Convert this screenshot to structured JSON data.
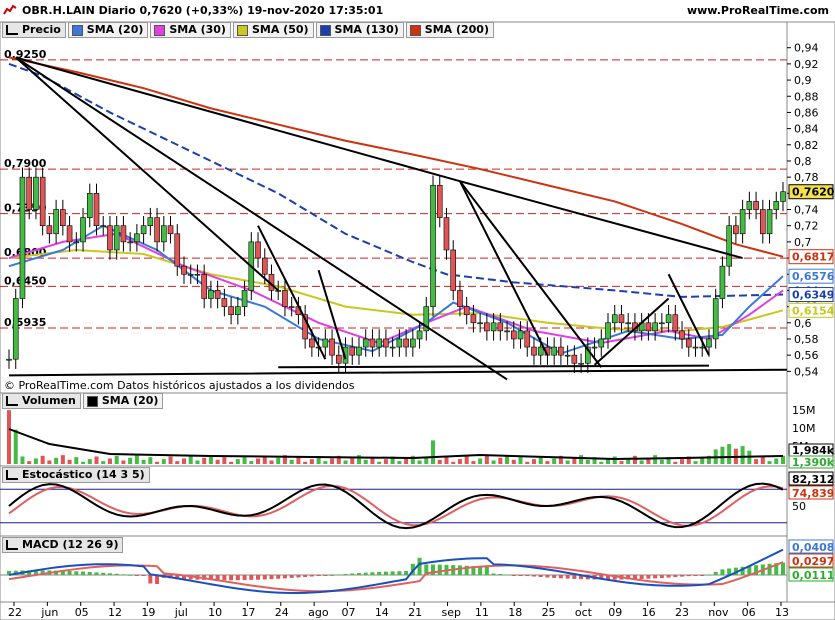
{
  "header": {
    "title": "OBR.H.LAIN Diario 0,7620 (+0,33%) 19-nov-2020 17:35:01",
    "site": "www.ProRealTime.com"
  },
  "legends": {
    "price": [
      {
        "label": "Precio",
        "color": "#000000"
      },
      {
        "label": "SMA (20)",
        "color": "#3c78d8"
      },
      {
        "label": "SMA (30)",
        "color": "#e040e0"
      },
      {
        "label": "SMA (50)",
        "color": "#c8c820"
      },
      {
        "label": "SMA (130)",
        "color": "#1c3fb0"
      },
      {
        "label": "SMA (200)",
        "color": "#cc3311"
      }
    ],
    "volume": [
      {
        "label": "Volumen",
        "color": "#000000"
      },
      {
        "label": "SMA (20)",
        "color": "#000000"
      }
    ],
    "stoch": [
      {
        "label": "Estocástico (14 3 5)",
        "color": "#000000"
      }
    ],
    "macd": [
      {
        "label": "MACD (12 26 9)",
        "color": "#000000"
      }
    ]
  },
  "footnote": "© ProRealTime.com Datos históricos ajustados a los dividendos",
  "chart_data": [
    {
      "type": "candlestick",
      "name": "price",
      "yticks": [
        "0,94",
        "0,92",
        "0,9",
        "0,88",
        "0,86",
        "0,84",
        "0,82",
        "0,8",
        "0,78",
        "0,76",
        "0,74",
        "0,72",
        "0,7",
        "0,68",
        "0,66",
        "0,64",
        "0,62",
        "0,6",
        "0,58",
        "0,56",
        "0,54"
      ],
      "ylim": [
        0.533,
        0.952
      ],
      "levels": [
        {
          "value": 0.925,
          "label": "0,9250"
        },
        {
          "value": 0.79,
          "label": "0,7900"
        },
        {
          "value": 0.735,
          "label": "0,7350"
        },
        {
          "value": 0.68,
          "label": "0,6800"
        },
        {
          "value": 0.645,
          "label": "0,6450"
        },
        {
          "value": 0.5935,
          "label": "0,5935"
        }
      ],
      "last_values": [
        {
          "label": "0,7620",
          "color": "#000000",
          "value": 0.762
        },
        {
          "label": "0,6817",
          "color": "#cc3311",
          "value": 0.6817
        },
        {
          "label": "0,6576",
          "color": "#3c78d8",
          "value": 0.6576
        },
        {
          "label": "0,6349",
          "color": "#1c3fb0",
          "value": 0.6349
        },
        {
          "label": "0,6154",
          "color": "#c8c820",
          "value": 0.6154
        }
      ],
      "x_labels": [
        "22",
        "jun",
        "05",
        "12",
        "19",
        "jul",
        "10",
        "17",
        "24",
        "ago",
        "07",
        "14",
        "21",
        "sep",
        "11",
        "18",
        "25",
        "oct",
        "09",
        "16",
        "23",
        "nov",
        "06",
        "13"
      ],
      "closes": [
        0.555,
        0.63,
        0.78,
        0.74,
        0.78,
        0.72,
        0.71,
        0.74,
        0.72,
        0.7,
        0.7,
        0.73,
        0.76,
        0.72,
        0.72,
        0.69,
        0.72,
        0.7,
        0.7,
        0.71,
        0.72,
        0.73,
        0.7,
        0.72,
        0.71,
        0.67,
        0.66,
        0.66,
        0.66,
        0.63,
        0.64,
        0.63,
        0.62,
        0.61,
        0.62,
        0.64,
        0.7,
        0.68,
        0.66,
        0.64,
        0.64,
        0.62,
        0.62,
        0.61,
        0.58,
        0.57,
        0.57,
        0.58,
        0.56,
        0.55,
        0.57,
        0.56,
        0.57,
        0.58,
        0.57,
        0.58,
        0.57,
        0.57,
        0.58,
        0.57,
        0.58,
        0.59,
        0.62,
        0.77,
        0.73,
        0.69,
        0.64,
        0.62,
        0.61,
        0.6,
        0.6,
        0.59,
        0.6,
        0.59,
        0.59,
        0.58,
        0.59,
        0.57,
        0.56,
        0.57,
        0.56,
        0.57,
        0.56,
        0.56,
        0.55,
        0.55,
        0.57,
        0.57,
        0.58,
        0.6,
        0.61,
        0.6,
        0.6,
        0.59,
        0.6,
        0.59,
        0.6,
        0.6,
        0.61,
        0.59,
        0.58,
        0.57,
        0.57,
        0.57,
        0.58,
        0.63,
        0.67,
        0.72,
        0.71,
        0.74,
        0.75,
        0.74,
        0.71,
        0.74,
        0.75,
        0.762
      ],
      "sma200_end": 0.6817,
      "sma130_end": 0.6349,
      "sma50_end": 0.6154,
      "sma20_end": 0.6576
    },
    {
      "type": "bar",
      "name": "volume",
      "yticks": [
        "15M",
        "10M",
        "5M"
      ],
      "last_values": [
        {
          "label": "1,984k",
          "color": "#000000"
        },
        {
          "label": "1,390k",
          "color": "#2eaa2e"
        }
      ]
    },
    {
      "type": "line",
      "name": "stochastic",
      "ylim": [
        0,
        100
      ],
      "levels": [
        80,
        20
      ],
      "yticks": [
        "50"
      ],
      "last_values": [
        {
          "label": "82,312",
          "color": "#000000"
        },
        {
          "label": "74,839",
          "color": "#cc3311"
        }
      ]
    },
    {
      "type": "line",
      "name": "macd",
      "last_values": [
        {
          "label": "0,0408",
          "color": "#3c78d8"
        },
        {
          "label": "0,0297",
          "color": "#cc3311"
        },
        {
          "label": "0,0111",
          "color": "#2eaa2e"
        }
      ]
    }
  ]
}
